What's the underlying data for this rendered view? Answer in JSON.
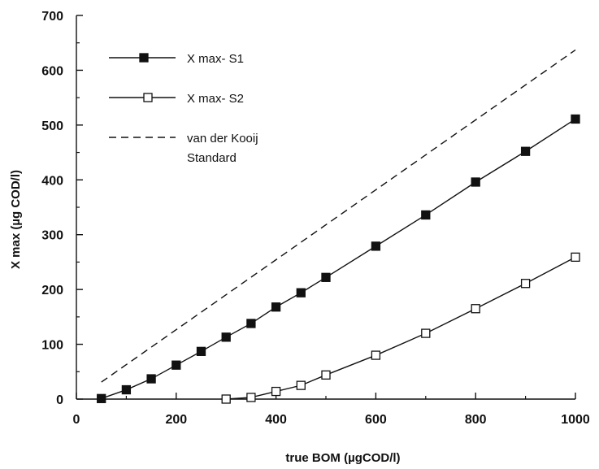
{
  "chart_data": {
    "type": "line",
    "xlabel": "true BOM (µgCOD/l)",
    "ylabel": "X max (µg COD/l)",
    "xlim": [
      0,
      1000
    ],
    "ylim": [
      0,
      700
    ],
    "x_ticks": [
      0,
      200,
      400,
      600,
      800,
      1000
    ],
    "y_ticks": [
      0,
      100,
      200,
      300,
      400,
      500,
      600,
      700
    ],
    "grid": false,
    "legend_position": "top-left",
    "series": [
      {
        "name": "X max- S1",
        "marker": "filled-square",
        "line": "solid",
        "x": [
          50,
          100,
          150,
          200,
          250,
          300,
          350,
          400,
          450,
          500,
          600,
          700,
          800,
          900,
          1000
        ],
        "y": [
          1,
          17,
          37,
          62,
          87,
          113,
          138,
          168,
          194,
          222,
          279,
          336,
          396,
          452,
          511
        ]
      },
      {
        "name": "X max- S2",
        "marker": "open-square",
        "line": "solid",
        "x": [
          300,
          350,
          400,
          450,
          500,
          600,
          700,
          800,
          900,
          1000
        ],
        "y": [
          0,
          3,
          14,
          25,
          44,
          80,
          120,
          165,
          211,
          259
        ]
      },
      {
        "name": "van der Kooij\nStandard",
        "name_lines": [
          "van der Kooij",
          "Standard"
        ],
        "marker": "none",
        "line": "dashed",
        "x": [
          50,
          1000
        ],
        "y": [
          31,
          637
        ]
      }
    ]
  }
}
